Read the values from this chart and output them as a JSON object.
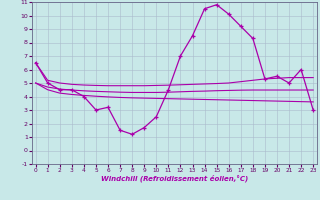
{
  "hours": [
    0,
    1,
    2,
    3,
    4,
    5,
    6,
    7,
    8,
    9,
    10,
    11,
    12,
    13,
    14,
    15,
    16,
    17,
    18,
    19,
    20,
    21,
    22,
    23
  ],
  "windchill": [
    6.5,
    5.0,
    4.5,
    4.5,
    4.0,
    3.0,
    3.2,
    1.5,
    1.2,
    1.7,
    2.5,
    4.5,
    7.0,
    8.5,
    10.5,
    10.8,
    10.1,
    9.2,
    8.3,
    5.3,
    5.5,
    5.0,
    6.0,
    3.0
  ],
  "line_upper": [
    6.5,
    5.2,
    5.0,
    4.9,
    4.85,
    4.82,
    4.8,
    4.8,
    4.8,
    4.8,
    4.82,
    4.84,
    4.87,
    4.9,
    4.93,
    4.96,
    5.0,
    5.1,
    5.2,
    5.3,
    5.35,
    5.4,
    5.4,
    5.4
  ],
  "line_mid": [
    5.0,
    4.7,
    4.55,
    4.48,
    4.42,
    4.38,
    4.35,
    4.32,
    4.3,
    4.3,
    4.3,
    4.32,
    4.35,
    4.38,
    4.4,
    4.43,
    4.45,
    4.47,
    4.48,
    4.48,
    4.48,
    4.48,
    4.48,
    4.48
  ],
  "line_lower": [
    5.0,
    4.5,
    4.25,
    4.15,
    4.08,
    4.02,
    3.97,
    3.93,
    3.9,
    3.88,
    3.86,
    3.84,
    3.82,
    3.8,
    3.78,
    3.76,
    3.74,
    3.72,
    3.7,
    3.68,
    3.66,
    3.64,
    3.62,
    3.6
  ],
  "xlabel": "Windchill (Refroidissement éolien,°C)",
  "ylim": [
    -1,
    11
  ],
  "xlim_min": 0,
  "xlim_max": 23,
  "yticks": [
    -1,
    0,
    1,
    2,
    3,
    4,
    5,
    6,
    7,
    8,
    9,
    10,
    11
  ],
  "xticks": [
    0,
    1,
    2,
    3,
    4,
    5,
    6,
    7,
    8,
    9,
    10,
    11,
    12,
    13,
    14,
    15,
    16,
    17,
    18,
    19,
    20,
    21,
    22,
    23
  ],
  "line_color": "#aa00aa",
  "bg_color": "#c8e8e8",
  "grid_color": "#aabbcc"
}
